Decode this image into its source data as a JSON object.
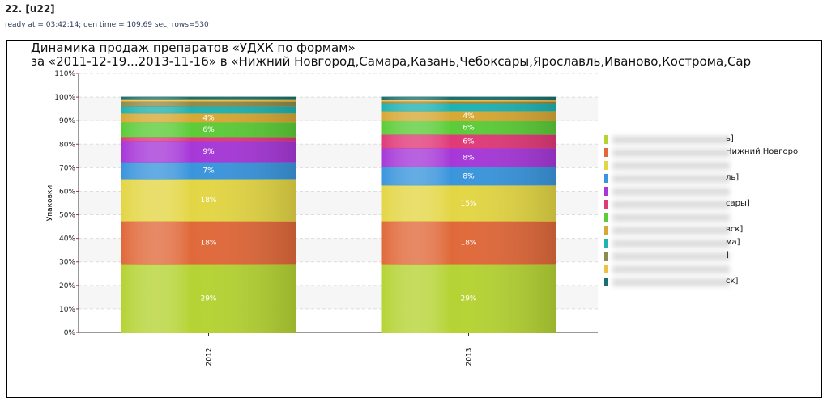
{
  "header": {
    "title": "22. [u22]",
    "meta": "ready at = 03:42:14; gen time = 109.69 sec; rows=530"
  },
  "chart_data": {
    "type": "bar",
    "stacked": true,
    "title": "Динамика продаж препаратов «УДХК по формам»",
    "subtitle": "за «2011-12-19...2013-11-16» в «Нижний Новгород,Самара,Казань,Чебоксары,Ярославль,Иваново,Кострома,Сар",
    "ylabel": "Упаковки",
    "xlabel": "",
    "ylim": [
      0,
      110
    ],
    "yticks": [
      "0%",
      "10%",
      "20%",
      "30%",
      "40%",
      "50%",
      "60%",
      "70%",
      "80%",
      "90%",
      "100%",
      "110%"
    ],
    "categories": [
      "2012",
      "2013"
    ],
    "series": [
      {
        "name": "ь]",
        "color": "#b5d334",
        "values": [
          29.2,
          29.2
        ],
        "labels": [
          "29%",
          "29%"
        ]
      },
      {
        "name": "Нижний Новгоро",
        "color": "#e0693a",
        "values": [
          18.2,
          18.2
        ],
        "labels": [
          "18%",
          "18%"
        ]
      },
      {
        "name": "",
        "color": "#e3d645",
        "values": [
          17.9,
          15.2
        ],
        "labels": [
          "18%",
          "15%"
        ]
      },
      {
        "name": "ль]",
        "color": "#3a95dc",
        "values": [
          7.2,
          7.9
        ],
        "labels": [
          "7%",
          "8%"
        ]
      },
      {
        "name": "",
        "color": "#a638d8",
        "values": [
          9.0,
          7.9
        ],
        "labels": [
          "9%",
          "8%"
        ]
      },
      {
        "name": "сары]",
        "color": "#e03a78",
        "values": [
          1.7,
          5.8
        ],
        "labels": [
          "",
          "6%"
        ]
      },
      {
        "name": "",
        "color": "#5ccc38",
        "values": [
          6.2,
          5.9
        ],
        "labels": [
          "6%",
          "6%"
        ]
      },
      {
        "name": "вск]",
        "color": "#d6a835",
        "values": [
          3.8,
          4.1
        ],
        "labels": [
          "4%",
          "4%"
        ]
      },
      {
        "name": "ма]",
        "color": "#1fb2b2",
        "values": [
          3.0,
          3.1
        ],
        "labels": [
          "",
          ""
        ]
      },
      {
        "name": "]",
        "color": "#8f8a4e",
        "values": [
          2.1,
          1.0
        ],
        "labels": [
          "",
          ""
        ]
      },
      {
        "name": "",
        "color": "#f0c040",
        "values": [
          1.0,
          0.7
        ],
        "labels": [
          "",
          ""
        ]
      },
      {
        "name": "ск]",
        "color": "#1d6e6e",
        "values": [
          0.7,
          1.0
        ],
        "labels": [
          "",
          ""
        ]
      }
    ]
  }
}
